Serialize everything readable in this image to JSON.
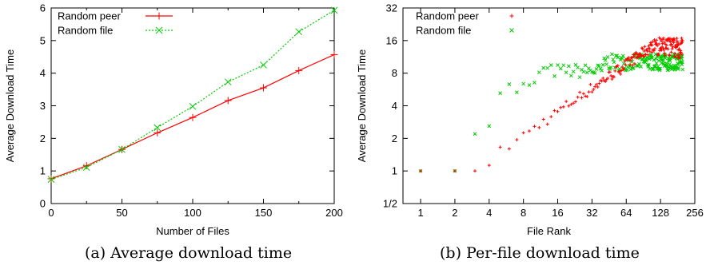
{
  "chart_data": [
    {
      "type": "line",
      "xlabel": "Number of Files",
      "ylabel": "Average Download Time",
      "xlim": [
        0,
        200
      ],
      "ylim": [
        0,
        6
      ],
      "xticks": [
        "0",
        "50",
        "100",
        "150",
        "200"
      ],
      "yticks": [
        "0",
        "1",
        "2",
        "3",
        "4",
        "5",
        "6"
      ],
      "legend_position": "top-left",
      "grid": false,
      "series": [
        {
          "name": "Random peer",
          "color": "#ff0000",
          "marker": "plus",
          "line": "solid",
          "x": [
            0,
            25,
            50,
            75,
            100,
            125,
            150,
            175,
            200
          ],
          "y": [
            0.76,
            1.16,
            1.66,
            2.17,
            2.64,
            3.16,
            3.55,
            4.08,
            4.57
          ]
        },
        {
          "name": "Random file",
          "color": "#00cc00",
          "marker": "x",
          "line": "dotted",
          "x": [
            0,
            25,
            50,
            75,
            100,
            125,
            150,
            175,
            200
          ],
          "y": [
            0.74,
            1.11,
            1.66,
            2.33,
            2.98,
            3.73,
            4.25,
            5.27,
            5.93
          ]
        }
      ],
      "caption": "(a) Average download time"
    },
    {
      "type": "scatter",
      "xlabel": "File Rank",
      "ylabel": "Average Download Time",
      "xscale": "log2",
      "yscale": "log2",
      "xlim": [
        0.7,
        256
      ],
      "ylim": [
        0.5,
        32
      ],
      "xticks": [
        "1",
        "2",
        "4",
        "8",
        "16",
        "32",
        "64",
        "128",
        "256"
      ],
      "yticks": [
        "1/2",
        "1",
        "2",
        "4",
        "8",
        "16",
        "32"
      ],
      "legend_position": "top-left",
      "grid": false,
      "series": [
        {
          "name": "Random peer",
          "color": "#ff0000",
          "marker": "plus"
        },
        {
          "name": "Random file",
          "color": "#00cc00",
          "marker": "x"
        }
      ],
      "caption": "(b) Per-file download time"
    }
  ]
}
